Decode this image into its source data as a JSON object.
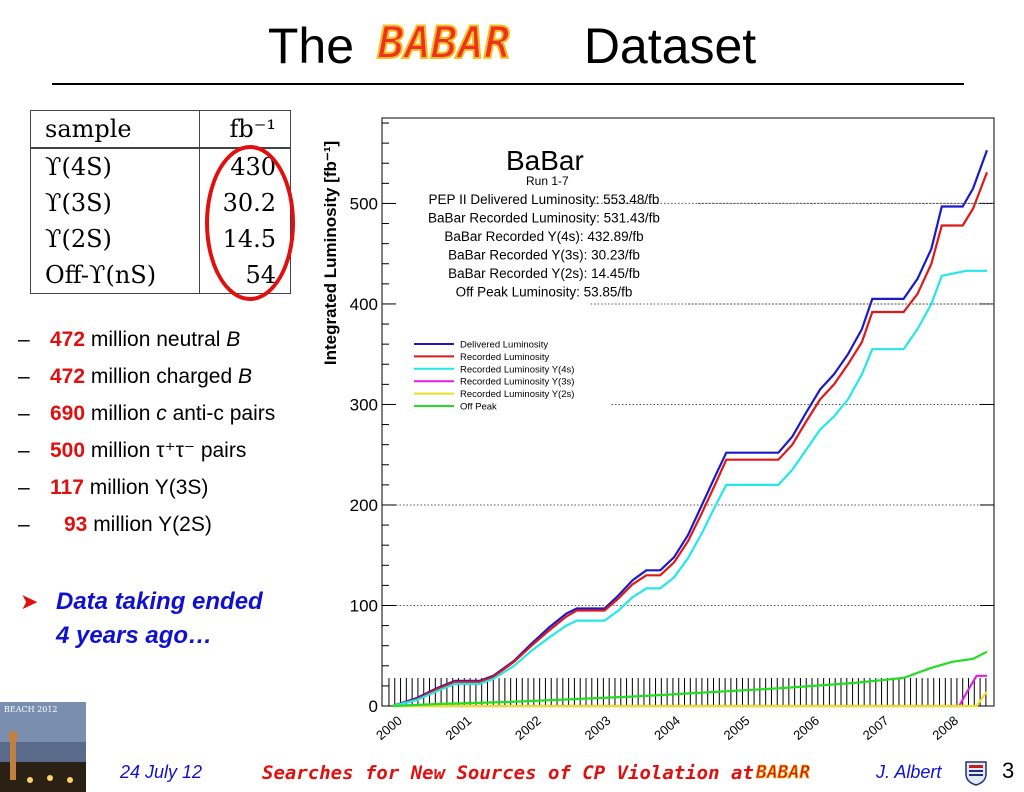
{
  "slide": {
    "title_prefix": "The",
    "title_logo": "BABAR",
    "title_suffix": "Dataset"
  },
  "table": {
    "headers": [
      "sample",
      "fb⁻¹"
    ],
    "rows": [
      [
        "ϒ(4S)",
        "430"
      ],
      [
        "ϒ(3S)",
        "30.2"
      ],
      [
        "ϒ(2S)",
        "14.5"
      ],
      [
        "Off-ϒ(nS)",
        "54"
      ]
    ]
  },
  "bullets": [
    {
      "dash": "–",
      "number": "472",
      "text": " million neutral ",
      "italic": "B",
      "tail": ""
    },
    {
      "dash": "–",
      "number": "472",
      "text": " million charged ",
      "italic": "B",
      "tail": ""
    },
    {
      "dash": "–",
      "number": "690",
      "text": " million ",
      "italic": "c",
      "tail": " anti-c pairs"
    },
    {
      "dash": "–",
      "number": "500",
      "text": " million τ⁺τ⁻ pairs",
      "italic": "",
      "tail": ""
    },
    {
      "dash": "–",
      "number": "117",
      "text": " million Y(3S)",
      "italic": "",
      "tail": ""
    },
    {
      "dash": "–",
      "number": "93",
      "text": " million Y(2S)",
      "italic": "",
      "tail": ""
    }
  ],
  "note": {
    "arrow_icon": "red-arrowhead-icon",
    "text": "Data taking ended 4 years ago…"
  },
  "chart_data": {
    "type": "line",
    "title": "BaBar",
    "subtitle": "Run 1-7",
    "ylabel": "Integrated Luminosity [fb⁻¹]",
    "xlabel": "",
    "xlim": [
      1999.7,
      2008.5
    ],
    "ylim": [
      0,
      585
    ],
    "x_ticks": [
      "2000",
      "2001",
      "2002",
      "2003",
      "2004",
      "2005",
      "2006",
      "2007",
      "2008"
    ],
    "y_ticks": [
      0,
      100,
      200,
      300,
      400,
      500
    ],
    "grid": "dotted horizontal at 100, 200, 300, 400, 500",
    "annotations": [
      "PEP II Delivered Luminosity: 553.48/fb",
      "BaBar Recorded Luminosity: 531.43/fb",
      "BaBar Recorded Y(4s): 432.89/fb",
      "BaBar Recorded Y(3s): 30.23/fb",
      "BaBar Recorded Y(2s): 14.45/fb",
      "Off Peak Luminosity: 53.85/fb"
    ],
    "legend_position": "upper-left",
    "series": [
      {
        "name": "Delivered Luminosity",
        "color": "#1a1acc",
        "points": [
          [
            1999.85,
            0
          ],
          [
            2000.2,
            8
          ],
          [
            2000.5,
            18
          ],
          [
            2000.75,
            25
          ],
          [
            2001.1,
            25
          ],
          [
            2001.3,
            30
          ],
          [
            2001.6,
            45
          ],
          [
            2001.85,
            62
          ],
          [
            2002.1,
            78
          ],
          [
            2002.35,
            92
          ],
          [
            2002.5,
            97
          ],
          [
            2002.9,
            97
          ],
          [
            2003.1,
            110
          ],
          [
            2003.3,
            125
          ],
          [
            2003.5,
            135
          ],
          [
            2003.7,
            135
          ],
          [
            2003.9,
            148
          ],
          [
            2004.1,
            170
          ],
          [
            2004.3,
            200
          ],
          [
            2004.5,
            230
          ],
          [
            2004.65,
            252
          ],
          [
            2005.4,
            252
          ],
          [
            2005.6,
            268
          ],
          [
            2005.8,
            292
          ],
          [
            2006.0,
            315
          ],
          [
            2006.2,
            330
          ],
          [
            2006.4,
            350
          ],
          [
            2006.6,
            375
          ],
          [
            2006.75,
            405
          ],
          [
            2007.2,
            405
          ],
          [
            2007.4,
            425
          ],
          [
            2007.6,
            455
          ],
          [
            2007.75,
            497
          ],
          [
            2008.05,
            497
          ],
          [
            2008.2,
            515
          ],
          [
            2008.4,
            553
          ]
        ]
      },
      {
        "name": "Recorded Luminosity",
        "color": "#e01818",
        "points": [
          [
            1999.85,
            0
          ],
          [
            2000.2,
            7
          ],
          [
            2000.5,
            17
          ],
          [
            2000.75,
            24
          ],
          [
            2001.1,
            24
          ],
          [
            2001.3,
            29
          ],
          [
            2001.6,
            44
          ],
          [
            2001.85,
            60
          ],
          [
            2002.1,
            75
          ],
          [
            2002.35,
            89
          ],
          [
            2002.5,
            95
          ],
          [
            2002.9,
            95
          ],
          [
            2003.1,
            107
          ],
          [
            2003.3,
            121
          ],
          [
            2003.5,
            130
          ],
          [
            2003.7,
            130
          ],
          [
            2003.9,
            143
          ],
          [
            2004.1,
            164
          ],
          [
            2004.3,
            192
          ],
          [
            2004.5,
            222
          ],
          [
            2004.65,
            245
          ],
          [
            2005.4,
            245
          ],
          [
            2005.6,
            260
          ],
          [
            2005.8,
            283
          ],
          [
            2006.0,
            305
          ],
          [
            2006.2,
            320
          ],
          [
            2006.4,
            340
          ],
          [
            2006.6,
            362
          ],
          [
            2006.75,
            392
          ],
          [
            2007.2,
            392
          ],
          [
            2007.4,
            410
          ],
          [
            2007.6,
            440
          ],
          [
            2007.75,
            478
          ],
          [
            2008.05,
            478
          ],
          [
            2008.2,
            495
          ],
          [
            2008.4,
            531
          ]
        ]
      },
      {
        "name": "Recorded Luminosity Y(4s)",
        "color": "#22e8e8",
        "points": [
          [
            1999.85,
            0
          ],
          [
            2000.2,
            6
          ],
          [
            2000.5,
            15
          ],
          [
            2000.75,
            22
          ],
          [
            2001.1,
            22
          ],
          [
            2001.3,
            27
          ],
          [
            2001.6,
            40
          ],
          [
            2001.85,
            55
          ],
          [
            2002.1,
            68
          ],
          [
            2002.35,
            80
          ],
          [
            2002.5,
            85
          ],
          [
            2002.9,
            85
          ],
          [
            2003.1,
            95
          ],
          [
            2003.3,
            108
          ],
          [
            2003.5,
            117
          ],
          [
            2003.7,
            117
          ],
          [
            2003.9,
            128
          ],
          [
            2004.1,
            147
          ],
          [
            2004.3,
            172
          ],
          [
            2004.5,
            200
          ],
          [
            2004.65,
            220
          ],
          [
            2005.4,
            220
          ],
          [
            2005.6,
            235
          ],
          [
            2005.8,
            255
          ],
          [
            2006.0,
            275
          ],
          [
            2006.2,
            288
          ],
          [
            2006.4,
            305
          ],
          [
            2006.6,
            330
          ],
          [
            2006.75,
            355
          ],
          [
            2007.2,
            355
          ],
          [
            2007.4,
            375
          ],
          [
            2007.6,
            400
          ],
          [
            2007.75,
            428
          ],
          [
            2008.1,
            433
          ],
          [
            2008.4,
            433
          ]
        ]
      },
      {
        "name": "Recorded Luminosity Y(3s)",
        "color": "#e020e0",
        "points": [
          [
            1999.85,
            0
          ],
          [
            2008.0,
            0
          ],
          [
            2008.12,
            15
          ],
          [
            2008.25,
            30
          ],
          [
            2008.4,
            30
          ]
        ]
      },
      {
        "name": "Recorded Luminosity Y(2s)",
        "color": "#e8e020",
        "points": [
          [
            1999.85,
            0
          ],
          [
            2008.25,
            0
          ],
          [
            2008.35,
            10
          ],
          [
            2008.4,
            14
          ]
        ]
      },
      {
        "name": "Off Peak",
        "color": "#22dd22",
        "points": [
          [
            1999.85,
            0
          ],
          [
            2000.5,
            2
          ],
          [
            2001.5,
            4
          ],
          [
            2002.5,
            7
          ],
          [
            2003.5,
            10
          ],
          [
            2004.5,
            14
          ],
          [
            2005.5,
            18
          ],
          [
            2006.5,
            23
          ],
          [
            2007.2,
            28
          ],
          [
            2007.6,
            38
          ],
          [
            2007.9,
            44
          ],
          [
            2008.2,
            47
          ],
          [
            2008.4,
            54
          ]
        ]
      }
    ]
  },
  "footer": {
    "date": "24 July 12",
    "talk_title": "Searches for New Sources of CP Violation at",
    "talk_logo": "BABAR",
    "author": "J. Albert",
    "page": "3",
    "thumb_caption": "BEACH 2012",
    "crest_icon": "university-crest-icon",
    "thumb_icon": "conference-photo-icon"
  }
}
